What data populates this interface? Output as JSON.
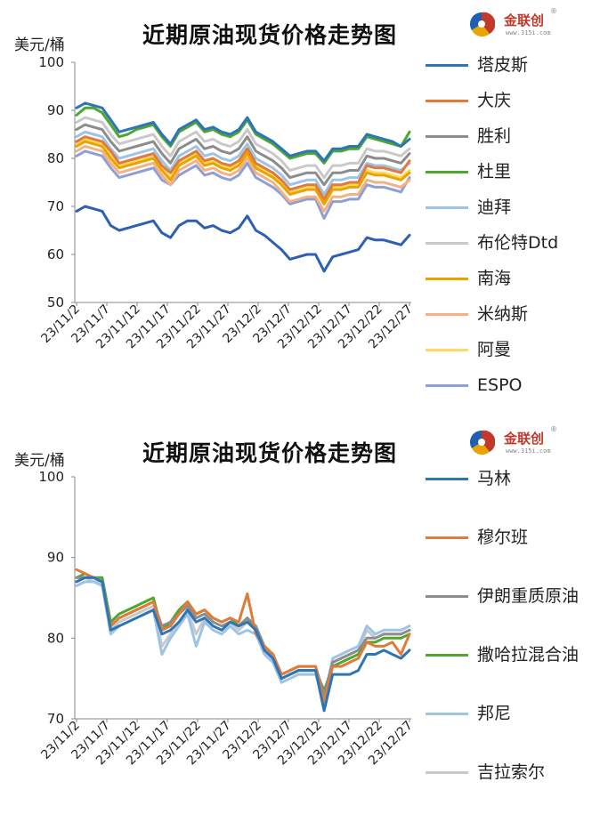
{
  "logo": {
    "brand": "金联创",
    "site": "www.315i.com",
    "reg": "®"
  },
  "charts": [
    {
      "title": "近期原油现货价格走势图",
      "unit": "美元/桶",
      "legend": [
        "塔皮斯",
        "大庆",
        "胜利",
        "杜里",
        "迪拜",
        "布伦特Dtd",
        "南海",
        "米纳斯",
        "阿曼",
        "ESPO"
      ]
    },
    {
      "title": "近期原油现货价格走势图",
      "unit": "美元/桶",
      "legend": [
        "马林",
        "穆尔班",
        "伊朗重质原油",
        "撒哈拉混合油",
        "邦尼",
        "吉拉索尔"
      ]
    }
  ],
  "chart_data": [
    {
      "type": "line",
      "title": "近期原油现货价格走势图",
      "ylabel": "美元/桶",
      "ylim": [
        50,
        100
      ],
      "yticks": [
        50,
        60,
        70,
        80,
        90,
        100
      ],
      "x": [
        "23/11/2",
        "23/11/3",
        "23/11/6",
        "23/11/7",
        "23/11/8",
        "23/11/9",
        "23/11/10",
        "23/11/13",
        "23/11/14",
        "23/11/15",
        "23/11/16",
        "23/11/17",
        "23/11/20",
        "23/11/21",
        "23/11/22",
        "23/11/23",
        "23/11/24",
        "23/11/27",
        "23/11/28",
        "23/11/29",
        "23/11/30",
        "23/12/1",
        "23/12/4",
        "23/12/5",
        "23/12/6",
        "23/12/7",
        "23/12/8",
        "23/12/11",
        "23/12/12",
        "23/12/13",
        "23/12/14",
        "23/12/15",
        "23/12/18",
        "23/12/19",
        "23/12/20",
        "23/12/21",
        "23/12/22",
        "23/12/25",
        "23/12/26",
        "23/12/27"
      ],
      "xticks": [
        "23/11/2",
        "23/11/7",
        "23/11/12",
        "23/11/17",
        "23/11/22",
        "23/11/27",
        "23/12/2",
        "23/12/7",
        "23/12/12",
        "23/12/17",
        "23/12/22",
        "23/12/27"
      ],
      "series": [
        {
          "name": "塔皮斯",
          "color": "#2e75b6",
          "values": [
            90.5,
            91.5,
            91.0,
            90.5,
            88.0,
            85.5,
            86.0,
            86.5,
            87.0,
            87.5,
            85.0,
            83.0,
            86.0,
            87.0,
            88.0,
            86.0,
            86.5,
            85.5,
            85.0,
            86.0,
            88.5,
            85.5,
            84.5,
            83.5,
            82.0,
            80.5,
            81.0,
            81.5,
            81.5,
            79.5,
            82.0,
            82.0,
            82.5,
            82.5,
            85.0,
            84.5,
            84.0,
            83.5,
            82.5,
            84.0
          ]
        },
        {
          "name": "大庆",
          "color": "#e07b39",
          "values": [
            83.5,
            84.5,
            84.0,
            83.5,
            81.5,
            79.0,
            79.5,
            80.0,
            80.5,
            81.0,
            78.5,
            77.0,
            79.5,
            80.5,
            81.5,
            79.5,
            80.0,
            79.0,
            78.5,
            79.5,
            82.0,
            79.0,
            78.0,
            77.0,
            75.5,
            73.5,
            74.0,
            74.5,
            74.5,
            71.5,
            74.5,
            74.5,
            75.0,
            75.0,
            78.5,
            78.0,
            78.0,
            77.5,
            77.0,
            79.5
          ]
        },
        {
          "name": "胜利",
          "color": "#8c8c8c",
          "values": [
            86.0,
            87.0,
            86.5,
            86.0,
            83.5,
            81.5,
            82.0,
            82.5,
            83.0,
            83.5,
            81.0,
            79.0,
            82.0,
            83.0,
            84.0,
            82.0,
            82.5,
            81.5,
            81.0,
            82.0,
            84.5,
            81.5,
            80.5,
            79.5,
            78.0,
            76.0,
            76.5,
            77.0,
            77.0,
            74.5,
            77.0,
            77.0,
            77.5,
            77.5,
            80.5,
            80.0,
            80.0,
            79.5,
            79.0,
            81.0
          ]
        },
        {
          "name": "杜里",
          "color": "#4ea72e",
          "values": [
            89.0,
            90.5,
            90.5,
            89.5,
            87.0,
            84.5,
            85.0,
            86.0,
            86.5,
            87.0,
            84.5,
            82.5,
            85.5,
            86.5,
            87.5,
            85.5,
            86.0,
            85.0,
            84.5,
            85.5,
            88.0,
            85.0,
            84.0,
            83.0,
            81.5,
            80.0,
            80.5,
            81.0,
            81.0,
            79.0,
            81.5,
            81.5,
            82.0,
            82.0,
            84.5,
            84.0,
            83.5,
            83.0,
            82.5,
            85.5
          ]
        },
        {
          "name": "迪拜",
          "color": "#9dc3e6",
          "values": [
            84.5,
            85.5,
            85.0,
            84.5,
            82.0,
            80.0,
            80.5,
            81.0,
            81.5,
            82.0,
            79.5,
            77.5,
            80.5,
            81.5,
            82.5,
            80.5,
            81.0,
            80.0,
            79.5,
            80.5,
            83.0,
            80.0,
            79.0,
            78.0,
            76.5,
            74.5,
            75.0,
            75.5,
            75.5,
            72.5,
            75.5,
            75.5,
            76.0,
            76.0,
            79.0,
            78.5,
            78.5,
            78.0,
            77.5,
            79.0
          ]
        },
        {
          "name": "布伦特Dtd",
          "color": "#c9c9c9",
          "values": [
            87.5,
            88.5,
            88.0,
            87.5,
            85.0,
            83.0,
            83.5,
            84.0,
            84.5,
            85.0,
            82.5,
            80.5,
            83.5,
            84.5,
            85.5,
            83.5,
            84.0,
            83.0,
            82.5,
            83.5,
            86.0,
            83.0,
            82.0,
            81.0,
            79.5,
            77.5,
            78.0,
            78.5,
            78.5,
            76.0,
            78.5,
            78.5,
            79.0,
            79.0,
            82.0,
            81.5,
            81.5,
            81.0,
            80.5,
            82.0
          ]
        },
        {
          "name": "南海",
          "color": "#e8a500",
          "values": [
            82.5,
            83.5,
            83.0,
            82.5,
            80.0,
            78.0,
            78.5,
            79.0,
            79.5,
            80.0,
            77.5,
            75.5,
            78.5,
            79.5,
            80.5,
            78.5,
            79.0,
            78.0,
            77.5,
            78.5,
            81.0,
            78.0,
            77.0,
            76.0,
            74.5,
            72.5,
            73.0,
            73.5,
            73.5,
            70.5,
            73.5,
            73.5,
            74.0,
            74.0,
            77.0,
            76.5,
            76.5,
            76.0,
            75.5,
            77.0
          ]
        },
        {
          "name": "米纳斯",
          "color": "#f4b183",
          "values": [
            81.5,
            82.5,
            82.0,
            81.5,
            79.0,
            77.0,
            77.5,
            78.0,
            78.5,
            79.0,
            76.5,
            74.5,
            77.5,
            78.5,
            79.5,
            77.5,
            78.0,
            77.0,
            76.5,
            77.5,
            80.0,
            77.0,
            76.0,
            75.0,
            73.0,
            71.0,
            71.5,
            72.0,
            72.0,
            69.0,
            72.0,
            72.0,
            72.5,
            72.5,
            75.5,
            75.0,
            75.0,
            74.5,
            74.0,
            75.5
          ]
        },
        {
          "name": "阿曼",
          "color": "#ffd966",
          "values": [
            83.0,
            84.0,
            83.5,
            83.0,
            80.5,
            78.5,
            79.0,
            79.5,
            80.0,
            80.5,
            78.0,
            76.0,
            79.0,
            80.0,
            81.0,
            79.0,
            79.5,
            78.5,
            78.0,
            79.0,
            81.5,
            78.5,
            77.5,
            76.5,
            75.0,
            73.0,
            73.5,
            74.0,
            74.0,
            71.0,
            74.0,
            74.0,
            74.5,
            74.5,
            77.5,
            77.0,
            77.0,
            76.5,
            76.0,
            77.5
          ]
        },
        {
          "name": "ESPO",
          "color": "#8e9fd6",
          "values": [
            80.5,
            81.5,
            81.0,
            80.5,
            78.0,
            76.0,
            76.5,
            77.0,
            77.5,
            78.0,
            75.5,
            74.5,
            76.5,
            77.5,
            78.5,
            76.5,
            77.0,
            76.0,
            75.5,
            76.5,
            79.0,
            76.0,
            75.0,
            74.0,
            72.5,
            70.5,
            71.0,
            71.5,
            71.5,
            67.5,
            71.0,
            71.0,
            71.5,
            71.5,
            74.5,
            74.0,
            74.0,
            73.5,
            73.0,
            76.0
          ]
        },
        {
          "name": "",
          "color": "#2f5fb3",
          "values": [
            69.0,
            70.0,
            69.5,
            69.0,
            66.0,
            65.0,
            65.5,
            66.0,
            66.5,
            67.0,
            64.5,
            63.5,
            66.0,
            67.0,
            67.0,
            65.5,
            66.0,
            65.0,
            64.5,
            65.5,
            68.0,
            65.0,
            64.0,
            62.5,
            61.0,
            59.0,
            59.5,
            60.0,
            60.0,
            56.5,
            59.5,
            60.0,
            60.5,
            61.0,
            63.5,
            63.0,
            63.0,
            62.5,
            62.0,
            64.0
          ]
        }
      ]
    },
    {
      "type": "line",
      "title": "近期原油现货价格走势图",
      "ylabel": "美元/桶",
      "ylim": [
        70,
        100
      ],
      "yticks": [
        70,
        80,
        90,
        100
      ],
      "x": [
        "23/11/2",
        "23/11/3",
        "23/11/6",
        "23/11/7",
        "23/11/8",
        "23/11/9",
        "23/11/10",
        "23/11/13",
        "23/11/14",
        "23/11/15",
        "23/11/16",
        "23/11/17",
        "23/11/20",
        "23/11/21",
        "23/11/22",
        "23/11/23",
        "23/11/24",
        "23/11/27",
        "23/11/28",
        "23/11/29",
        "23/11/30",
        "23/12/1",
        "23/12/4",
        "23/12/5",
        "23/12/6",
        "23/12/7",
        "23/12/8",
        "23/12/11",
        "23/12/12",
        "23/12/13",
        "23/12/14",
        "23/12/15",
        "23/12/18",
        "23/12/19",
        "23/12/20",
        "23/12/21",
        "23/12/22",
        "23/12/25",
        "23/12/26",
        "23/12/27"
      ],
      "xticks": [
        "23/11/2",
        "23/11/7",
        "23/11/12",
        "23/11/17",
        "23/11/22",
        "23/11/27",
        "23/12/2",
        "23/12/7",
        "23/12/12",
        "23/12/17",
        "23/12/22",
        "23/12/27"
      ],
      "series": [
        {
          "name": "马林",
          "color": "#2e75b6",
          "values": [
            87.0,
            87.5,
            87.5,
            87.0,
            81.0,
            81.5,
            82.0,
            82.5,
            83.0,
            83.5,
            80.5,
            81.0,
            82.0,
            83.5,
            82.0,
            82.5,
            81.5,
            81.0,
            82.0,
            81.5,
            82.0,
            81.0,
            78.5,
            77.5,
            75.0,
            75.5,
            76.0,
            76.0,
            76.0,
            71.0,
            75.5,
            75.5,
            75.5,
            76.0,
            78.0,
            78.0,
            78.5,
            78.0,
            77.5,
            78.5
          ]
        },
        {
          "name": "穆尔班",
          "color": "#e07b39",
          "values": [
            88.5,
            88.0,
            87.5,
            87.0,
            81.5,
            82.5,
            83.0,
            83.5,
            84.0,
            84.5,
            81.0,
            81.5,
            83.0,
            84.5,
            83.0,
            83.5,
            82.5,
            82.0,
            82.5,
            82.0,
            85.5,
            80.5,
            79.0,
            78.0,
            75.5,
            76.0,
            76.5,
            76.5,
            76.5,
            72.0,
            76.5,
            76.5,
            77.0,
            77.5,
            79.5,
            79.0,
            79.0,
            79.5,
            78.0,
            80.5
          ]
        },
        {
          "name": "伊朗重质原油",
          "color": "#8c8c8c",
          "values": [
            87.5,
            87.5,
            87.5,
            87.0,
            81.5,
            82.5,
            83.0,
            83.5,
            84.0,
            84.5,
            81.5,
            82.0,
            83.0,
            84.0,
            82.5,
            83.0,
            82.0,
            81.5,
            82.0,
            81.5,
            82.5,
            81.5,
            79.0,
            78.0,
            75.5,
            76.0,
            76.5,
            76.5,
            76.5,
            73.0,
            77.0,
            77.5,
            78.0,
            78.5,
            80.0,
            80.0,
            80.5,
            80.5,
            80.5,
            81.0
          ]
        },
        {
          "name": "撒哈拉混合油",
          "color": "#4ea72e",
          "values": [
            87.5,
            88.0,
            87.5,
            87.5,
            82.0,
            83.0,
            83.5,
            84.0,
            84.5,
            85.0,
            81.0,
            82.0,
            83.5,
            84.5,
            83.0,
            83.5,
            82.5,
            82.0,
            82.5,
            81.5,
            82.5,
            81.0,
            79.0,
            78.0,
            75.0,
            75.5,
            76.0,
            76.0,
            76.0,
            73.5,
            76.5,
            77.0,
            77.5,
            78.0,
            79.5,
            79.5,
            80.0,
            80.0,
            80.0,
            80.5
          ]
        },
        {
          "name": "邦尼",
          "color": "#9dc3e6",
          "values": [
            86.5,
            87.0,
            87.0,
            86.5,
            80.5,
            81.5,
            82.0,
            82.5,
            83.0,
            83.5,
            78.0,
            80.0,
            81.5,
            83.0,
            79.0,
            82.0,
            81.0,
            80.5,
            81.5,
            80.5,
            81.0,
            80.5,
            78.0,
            77.0,
            74.5,
            75.0,
            75.5,
            75.5,
            75.5,
            72.5,
            77.5,
            78.0,
            78.5,
            79.0,
            81.5,
            80.5,
            81.0,
            81.0,
            81.0,
            81.5
          ]
        },
        {
          "name": "吉拉索尔",
          "color": "#c9c9c9",
          "values": [
            87.0,
            87.5,
            87.0,
            87.0,
            81.0,
            82.0,
            82.5,
            83.0,
            83.5,
            84.0,
            79.0,
            80.5,
            82.0,
            83.5,
            80.5,
            82.5,
            81.5,
            81.0,
            82.0,
            81.0,
            82.0,
            81.0,
            78.5,
            77.5,
            75.0,
            75.5,
            76.0,
            76.0,
            76.0,
            72.0,
            77.0,
            77.5,
            78.0,
            78.5,
            81.0,
            80.0,
            80.5,
            80.5,
            80.5,
            81.0
          ]
        }
      ]
    }
  ]
}
